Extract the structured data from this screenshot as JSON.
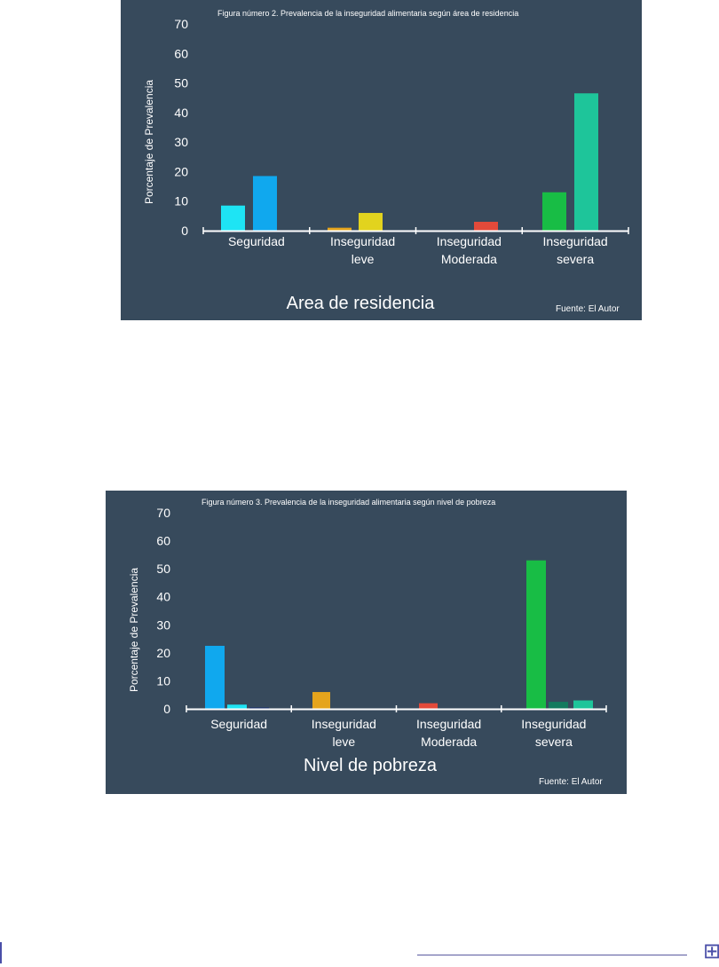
{
  "chart_data": [
    {
      "type": "bar",
      "title": "Figura número 2. Prevalencia de la inseguridad alimentaria según área de residencia",
      "xlabel": "Area de residencia",
      "ylabel": "Porcentaje de Prevalencia",
      "source": "Fuente: El Autor",
      "ylim": [
        0,
        70
      ],
      "yticks": [
        0,
        10,
        20,
        30,
        40,
        50,
        60,
        70
      ],
      "categories": [
        [
          "Seguridad"
        ],
        [
          "Inseguridad",
          "leve"
        ],
        [
          "Inseguridad",
          "Moderada"
        ],
        [
          "Inseguridad",
          "severa"
        ]
      ],
      "groups": [
        {
          "values": [
            8.5,
            18.5
          ],
          "colors": [
            "#1ee4f4",
            "#10a8ee"
          ]
        },
        {
          "values": [
            1.0,
            6.0
          ],
          "colors": [
            "#e5a41c",
            "#e2d31e"
          ]
        },
        {
          "values": [
            3.0
          ],
          "colors": [
            "#e34a3a"
          ]
        },
        {
          "values": [
            13.0,
            46.5
          ],
          "colors": [
            "#18bd45",
            "#1ec59a"
          ]
        }
      ],
      "grid": false
    },
    {
      "type": "bar",
      "title": "Figura número 3.  Prevalencia de la inseguridad alimentaria según nivel de pobreza",
      "xlabel": "Nivel de pobreza",
      "ylabel": "Porcentaje de Prevalencia",
      "source": "Fuente: El Autor",
      "ylim": [
        0,
        70
      ],
      "yticks": [
        0,
        10,
        20,
        30,
        40,
        50,
        60,
        70
      ],
      "categories": [
        [
          "Seguridad"
        ],
        [
          "Inseguridad",
          "leve"
        ],
        [
          "Inseguridad",
          "Moderada"
        ],
        [
          "Inseguridad",
          "severa"
        ]
      ],
      "groups": [
        {
          "values": [
            22.5,
            1.5,
            0.5
          ],
          "colors": [
            "#10a8ee",
            "#1ee4f4",
            "#18306e"
          ]
        },
        {
          "values": [
            6.0
          ],
          "colors": [
            "#e5a41c"
          ]
        },
        {
          "values": [
            2.0
          ],
          "colors": [
            "#e34a3a"
          ]
        },
        {
          "values": [
            53.0,
            2.5,
            3.0
          ],
          "colors": [
            "#18bd45",
            "#137a5e",
            "#1ec59a"
          ]
        }
      ],
      "grid": false
    }
  ]
}
